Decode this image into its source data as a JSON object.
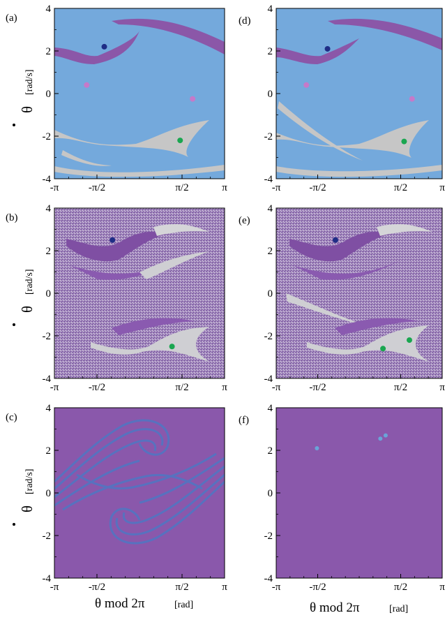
{
  "figure": {
    "x_axis_label": "θ mod 2π",
    "x_axis_unit": "[rad]",
    "y_axis_label": "θ",
    "y_axis_unit": "[rad/s]"
  },
  "colors": {
    "light_blue": "#74a9dc",
    "purple": "#8b57a8",
    "gray": "#c6c6c6",
    "dark_blue": "#1f2d86",
    "pink": "#c679c9",
    "green": "#1aa650",
    "steel_blue": "#5275c2",
    "dot_blue": "#6aa4d8"
  },
  "chart_data": [
    {
      "panel": "(a)",
      "type": "scatter",
      "grid": false,
      "xlim": [
        -3.1416,
        3.1416
      ],
      "ylim": [
        -4,
        4
      ],
      "xticks": [
        "-π",
        "-π/2",
        "π/2",
        "π"
      ],
      "yticks": [
        "-4",
        "-2",
        "0",
        "2",
        "4"
      ],
      "background": "light blue basin",
      "points": [
        {
          "x": -1.3,
          "y": 2.2,
          "color": "dark blue"
        },
        {
          "x": -1.95,
          "y": 0.4,
          "color": "pink"
        },
        {
          "x": 1.96,
          "y": -0.25,
          "color": "pink"
        },
        {
          "x": 1.5,
          "y": -2.2,
          "color": "green"
        }
      ]
    },
    {
      "panel": "(b)",
      "type": "scatter",
      "grid": false,
      "xlim": [
        -3.1416,
        3.1416
      ],
      "ylim": [
        -4,
        4
      ],
      "xticks": [
        "-π",
        "-π/2",
        "π/2",
        "π"
      ],
      "yticks": [
        "-4",
        "-2",
        "0",
        "2",
        "4"
      ],
      "background": "speckled purple/gray basin",
      "points": [
        {
          "x": -1.0,
          "y": 2.5,
          "color": "dark blue"
        },
        {
          "x": 1.2,
          "y": -2.5,
          "color": "green"
        }
      ]
    },
    {
      "panel": "(c)",
      "type": "scatter",
      "grid": false,
      "xlim": [
        -3.1416,
        3.1416
      ],
      "ylim": [
        -4,
        4
      ],
      "xticks": [
        "-π",
        "-π/2",
        "π/2",
        "π"
      ],
      "yticks": [
        "-4",
        "-2",
        "0",
        "2",
        "4"
      ],
      "background": "purple with blue strange-attractor bands",
      "points": []
    },
    {
      "panel": "(d)",
      "type": "scatter",
      "grid": false,
      "xlim": [
        -3.1416,
        3.1416
      ],
      "ylim": [
        -4,
        4
      ],
      "xticks": [
        "-π",
        "-π/2",
        "π/2",
        "π"
      ],
      "yticks": [
        "-4",
        "-2",
        "0",
        "2",
        "4"
      ],
      "background": "light blue basin",
      "points": [
        {
          "x": -1.2,
          "y": 2.1,
          "color": "dark blue"
        },
        {
          "x": -2.0,
          "y": 0.4,
          "color": "pink"
        },
        {
          "x": 2.0,
          "y": -0.25,
          "color": "pink"
        },
        {
          "x": 1.7,
          "y": -2.25,
          "color": "green"
        }
      ]
    },
    {
      "panel": "(e)",
      "type": "scatter",
      "grid": false,
      "xlim": [
        -3.1416,
        3.1416
      ],
      "ylim": [
        -4,
        4
      ],
      "xticks": [
        "-π",
        "-π/2",
        "π/2",
        "π"
      ],
      "yticks": [
        "-4",
        "-2",
        "0",
        "2",
        "4"
      ],
      "background": "speckled purple/gray basin",
      "points": [
        {
          "x": -0.9,
          "y": 2.5,
          "color": "dark blue"
        },
        {
          "x": 0.9,
          "y": -2.6,
          "color": "green"
        },
        {
          "x": 1.9,
          "y": -2.2,
          "color": "green"
        }
      ]
    },
    {
      "panel": "(f)",
      "type": "scatter",
      "grid": false,
      "xlim": [
        -3.1416,
        3.1416
      ],
      "ylim": [
        -4,
        4
      ],
      "xticks": [
        "-π",
        "-π/2",
        "π/2",
        "π"
      ],
      "yticks": [
        "-4",
        "-2",
        "0",
        "2",
        "4"
      ],
      "background": "solid purple",
      "points": [
        {
          "x": -1.6,
          "y": 2.1,
          "color": "light blue"
        },
        {
          "x": 0.8,
          "y": 2.55,
          "color": "light blue"
        },
        {
          "x": 1.0,
          "y": 2.7,
          "color": "light blue"
        }
      ]
    }
  ]
}
